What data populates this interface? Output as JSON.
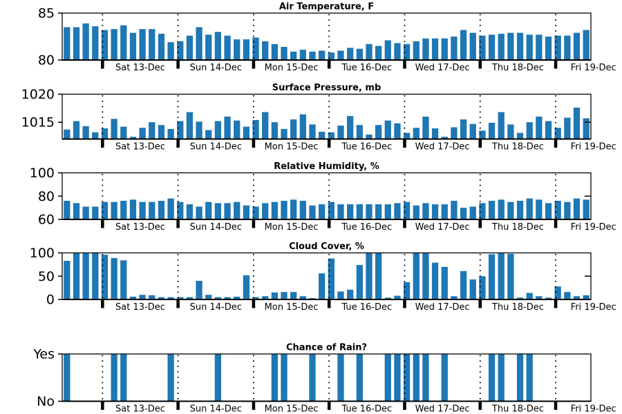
{
  "figure": {
    "background": "#ffffff",
    "bar_color": "#1f77b4",
    "axis_color": "#000000",
    "text_color": "#000000"
  },
  "x_axis": {
    "day_labels": [
      "Sat 13-Dec",
      "Sun 14-Dec",
      "Mon 15-Dec",
      "Tue 16-Dec",
      "Wed 17-Dec",
      "Thu 18-Dec",
      "Fri 19-Dec"
    ],
    "lead_in_bars": 4,
    "bars_per_day": 8,
    "total_bars": 56
  },
  "chart_data": [
    {
      "type": "bar",
      "title": "Air Temperature, F",
      "ylabel": "",
      "ylim": [
        80,
        85
      ],
      "yticks": [
        80,
        85
      ],
      "ytick_labels": [
        "80",
        "85"
      ],
      "right_tick_value": null,
      "grid": "vertical-dotted-day-lines",
      "values": [
        83.5,
        83.5,
        83.9,
        83.6,
        83.2,
        83.3,
        83.7,
        82.9,
        83.3,
        83.3,
        82.8,
        81.9,
        82.0,
        82.6,
        83.5,
        82.7,
        83.0,
        82.6,
        82.2,
        82.2,
        82.4,
        82.0,
        81.7,
        81.4,
        80.9,
        81.1,
        80.9,
        81.0,
        80.8,
        81.0,
        81.3,
        81.2,
        81.7,
        81.5,
        82.1,
        81.8,
        81.7,
        82.0,
        82.3,
        82.3,
        82.3,
        82.5,
        83.2,
        82.9,
        82.6,
        82.7,
        82.8,
        82.9,
        82.9,
        82.7,
        82.7,
        82.5,
        82.6,
        82.6,
        82.9,
        83.2
      ]
    },
    {
      "type": "bar",
      "title": "Surface Pressure, mb",
      "ylabel": "",
      "ylim": [
        1012,
        1020
      ],
      "yticks": [
        1015,
        1020
      ],
      "ytick_labels": [
        "1015",
        "1020"
      ],
      "right_tick_value": 1015,
      "grid": "vertical-dotted-day-lines",
      "values": [
        1013.7,
        1015.2,
        1014.3,
        1013.2,
        1013.9,
        1015.6,
        1014.2,
        1012.4,
        1014.0,
        1015.0,
        1014.5,
        1013.8,
        1015.2,
        1016.8,
        1015.1,
        1013.6,
        1015.2,
        1016.0,
        1015.3,
        1014.2,
        1015.4,
        1016.8,
        1015.0,
        1013.8,
        1015.5,
        1016.4,
        1014.6,
        1013.3,
        1013.2,
        1014.4,
        1016.1,
        1014.5,
        1012.8,
        1014.5,
        1015.3,
        1014.8,
        1013.1,
        1014.0,
        1016.0,
        1013.9,
        1012.4,
        1014.1,
        1015.5,
        1014.7,
        1013.5,
        1014.9,
        1016.8,
        1014.6,
        1013.1,
        1015.0,
        1016.0,
        1015.2,
        1014.0,
        1015.8,
        1017.6,
        1015.7
      ]
    },
    {
      "type": "bar",
      "title": "Relative Humidity, %",
      "ylabel": "",
      "ylim": [
        60,
        100
      ],
      "yticks": [
        60,
        80,
        100
      ],
      "ytick_labels": [
        "60",
        "80",
        "100"
      ],
      "right_tick_value": 80,
      "grid": "vertical-dotted-day-lines",
      "values": [
        76,
        74,
        71,
        71,
        75,
        75,
        76,
        77,
        75,
        75,
        76,
        78,
        75,
        73,
        71,
        75,
        74,
        74,
        75,
        72,
        71,
        74,
        75,
        76,
        77,
        76,
        72,
        73,
        75,
        73,
        73,
        73,
        73,
        73,
        73,
        74,
        75,
        72,
        74,
        73,
        73,
        76,
        70,
        71,
        74,
        76,
        77,
        75,
        76,
        78,
        77,
        74,
        76,
        75,
        78,
        77
      ]
    },
    {
      "type": "bar",
      "title": "Cloud Cover, %",
      "ylabel": "",
      "ylim": [
        0,
        100
      ],
      "yticks": [
        0,
        50,
        100
      ],
      "ytick_labels": [
        "0",
        "50",
        "100"
      ],
      "right_tick_value": 50,
      "grid": "vertical-dotted-day-lines",
      "values": [
        83,
        100,
        100,
        100,
        96,
        89,
        84,
        6,
        10,
        9,
        5,
        5,
        5,
        5,
        40,
        10,
        5,
        5,
        6,
        52,
        5,
        7,
        15,
        16,
        16,
        7,
        3,
        56,
        88,
        17,
        21,
        74,
        100,
        100,
        4,
        8,
        37,
        100,
        100,
        79,
        70,
        7,
        61,
        43,
        50,
        97,
        100,
        98,
        4,
        14,
        7,
        4,
        28,
        16,
        7,
        9
      ]
    },
    {
      "type": "bar",
      "title": "Chance of Rain?",
      "ylabel": "",
      "ylim": [
        0,
        1
      ],
      "yticks": [
        0,
        1
      ],
      "ytick_labels": [
        "No",
        "Yes"
      ],
      "right_tick_value": null,
      "grid": "vertical-dotted-day-lines",
      "values": [
        1,
        0,
        0,
        0,
        0,
        1,
        1,
        0,
        0,
        0,
        0,
        1,
        0,
        0,
        0,
        0,
        1,
        0,
        0,
        0,
        0,
        0,
        1,
        1,
        0,
        0,
        1,
        0,
        0,
        1,
        0,
        1,
        0,
        0,
        1,
        1,
        1,
        1,
        1,
        0,
        1,
        0,
        0,
        0,
        0,
        1,
        1,
        0,
        1,
        1,
        0,
        0,
        0,
        0,
        0,
        0
      ]
    }
  ]
}
